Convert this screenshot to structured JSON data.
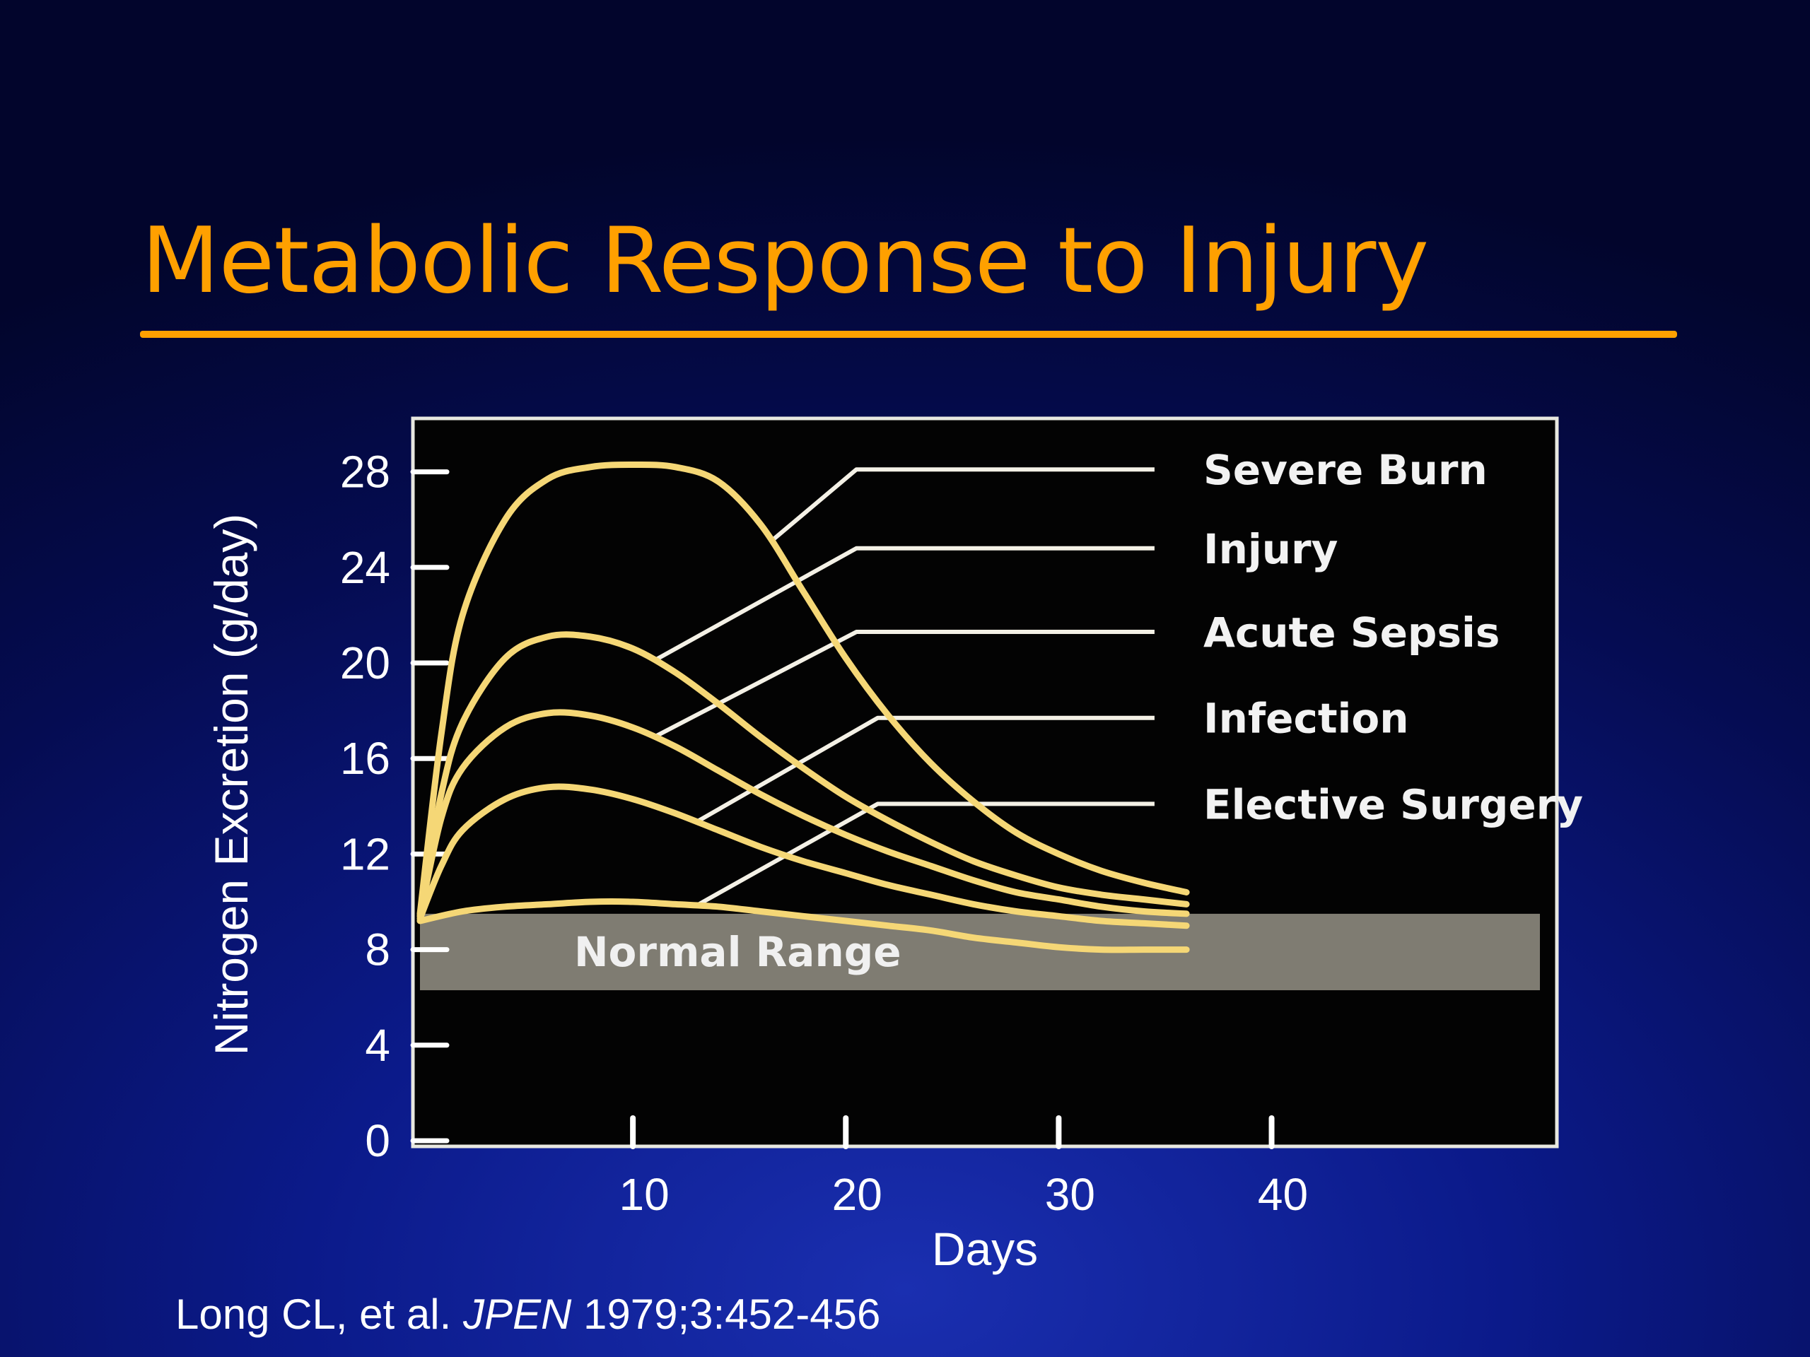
{
  "slide": {
    "title": "Metabolic Response to Injury",
    "citation": {
      "authors": "Long CL, et al.",
      "journal": "JPEN",
      "reference": "1979;3:452-456"
    }
  },
  "colors": {
    "title": "#ffa000",
    "curve": "#f5d776",
    "band": "#7f7c72",
    "plot_background": "#030303"
  },
  "chart_data": {
    "type": "line",
    "title": "",
    "xlabel": "Days",
    "ylabel": "Nitrogen Excretion (g/day)",
    "xlim": [
      0,
      53
    ],
    "ylim": [
      0,
      30
    ],
    "x_ticks": [
      10,
      20,
      30,
      40
    ],
    "y_ticks": [
      0,
      4,
      8,
      12,
      16,
      20,
      24,
      28
    ],
    "grid": false,
    "legend_position": "right (leader lines to curves)",
    "normal_range": {
      "label": "Normal Range",
      "y_min": 6.3,
      "y_max": 9.5
    },
    "series": [
      {
        "name": "Severe Burn",
        "x": [
          0,
          1,
          2,
          4,
          6,
          8,
          10,
          12,
          14,
          16,
          18,
          20,
          22,
          24,
          26,
          28,
          30,
          32,
          34,
          36
        ],
        "y": [
          9.5,
          17,
          22,
          26,
          27.7,
          28.2,
          28.3,
          28.2,
          27.6,
          25.8,
          23,
          20.2,
          17.8,
          15.8,
          14.2,
          12.9,
          12,
          11.3,
          10.8,
          10.4
        ]
      },
      {
        "name": "Injury",
        "x": [
          0,
          1,
          2,
          4,
          6,
          8,
          10,
          12,
          14,
          16,
          18,
          20,
          22,
          24,
          26,
          28,
          30,
          32,
          34,
          36
        ],
        "y": [
          9.4,
          14.5,
          17.5,
          20.2,
          21.1,
          21.1,
          20.6,
          19.6,
          18.3,
          16.9,
          15.6,
          14.4,
          13.4,
          12.5,
          11.7,
          11.1,
          10.6,
          10.3,
          10.1,
          9.9
        ]
      },
      {
        "name": "Acute Sepsis",
        "x": [
          0,
          1,
          2,
          4,
          6,
          8,
          10,
          12,
          14,
          16,
          18,
          20,
          22,
          24,
          26,
          28,
          30,
          32,
          34,
          36
        ],
        "y": [
          9.4,
          13.5,
          15.6,
          17.3,
          17.9,
          17.8,
          17.3,
          16.5,
          15.5,
          14.5,
          13.6,
          12.8,
          12.1,
          11.5,
          10.9,
          10.4,
          10.1,
          9.8,
          9.6,
          9.5
        ]
      },
      {
        "name": "Infection",
        "x": [
          0,
          1,
          2,
          4,
          6,
          8,
          10,
          12,
          14,
          16,
          18,
          20,
          22,
          24,
          26,
          28,
          30,
          32,
          34,
          36
        ],
        "y": [
          9.3,
          11.5,
          13,
          14.3,
          14.8,
          14.7,
          14.3,
          13.7,
          13,
          12.3,
          11.7,
          11.2,
          10.7,
          10.3,
          9.9,
          9.6,
          9.4,
          9.2,
          9.1,
          9.0
        ]
      },
      {
        "name": "Elective Surgery",
        "x": [
          0,
          2,
          4,
          6,
          8,
          10,
          12,
          14,
          16,
          18,
          20,
          22,
          24,
          26,
          28,
          30,
          32,
          34,
          36
        ],
        "y": [
          9.2,
          9.6,
          9.8,
          9.9,
          10.0,
          10.0,
          9.9,
          9.8,
          9.6,
          9.4,
          9.2,
          9.0,
          8.8,
          8.5,
          8.3,
          8.1,
          8.0,
          8.0,
          8.0
        ]
      }
    ]
  }
}
